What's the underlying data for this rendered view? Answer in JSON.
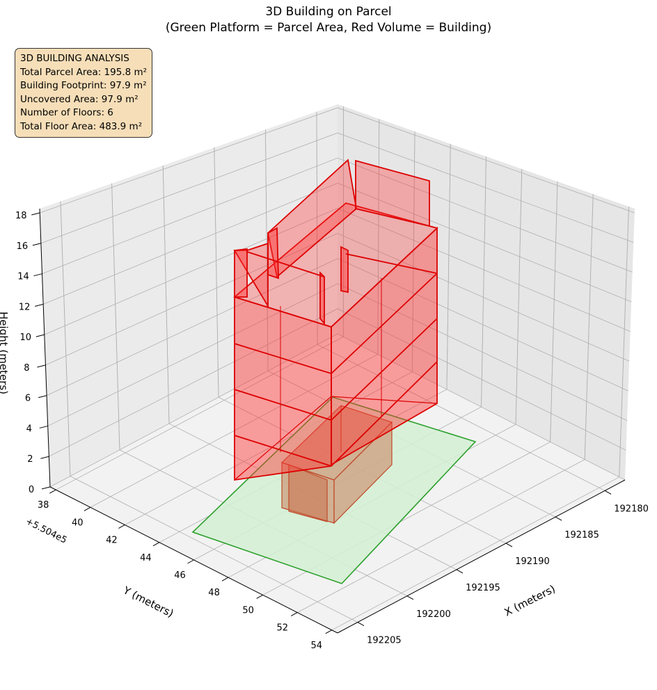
{
  "chart_data": {
    "type": "3d-polygon",
    "title": "3D Building on Parcel",
    "subtitle": "(Green Platform = Parcel Area, Red Volume = Building)",
    "xlabel": "X (meters)",
    "ylabel": "Y (meters)",
    "zlabel": "Height (meters)",
    "y_offset_label": "+5.504e5",
    "x_ticks": [
      "192180",
      "192185",
      "192190",
      "192195",
      "192200",
      "192205"
    ],
    "y_ticks": [
      "38",
      "40",
      "42",
      "44",
      "46",
      "48",
      "50",
      "52",
      "54"
    ],
    "z_ticks": [
      "0",
      "2",
      "4",
      "6",
      "8",
      "10",
      "12",
      "14",
      "16",
      "18"
    ],
    "zlim": [
      0,
      18
    ],
    "series": [
      {
        "name": "Parcel Area",
        "color": "#2ca02c",
        "fill": "#d4f0d4",
        "height": 0
      },
      {
        "name": "Building",
        "color": "#e00000",
        "fill": "#ff4d4d",
        "floors": 6
      }
    ],
    "grid": true
  },
  "info": {
    "lines": [
      "3D BUILDING ANALYSIS",
      "Total Parcel Area: 195.8 m²",
      "Building Footprint: 97.9 m²",
      "Uncovered Area: 97.9 m²",
      "Number of Floors: 6",
      "Total Floor Area: 483.9 m²"
    ]
  }
}
